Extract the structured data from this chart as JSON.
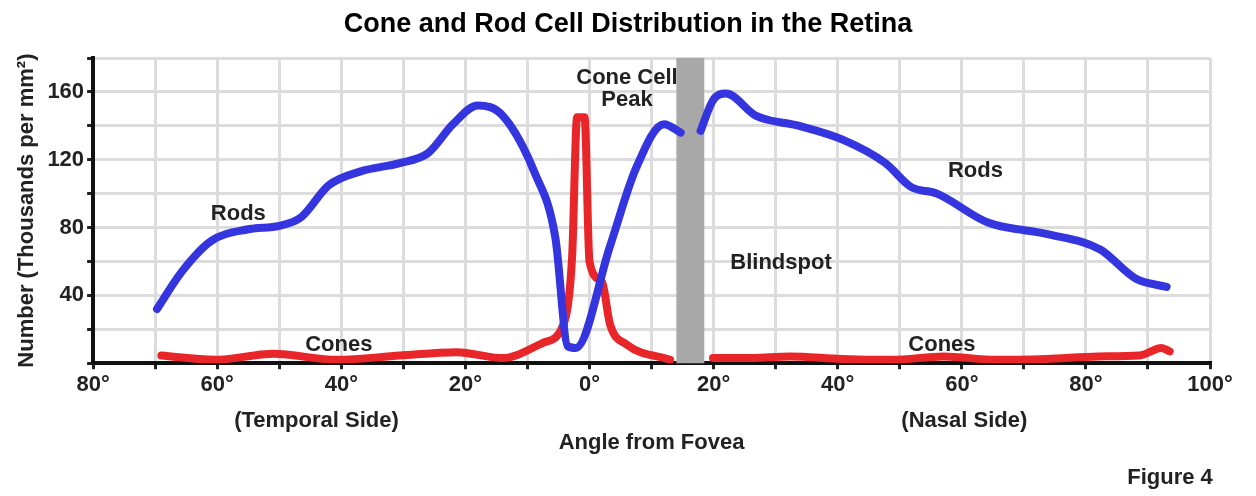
{
  "chart_data": {
    "type": "line",
    "title": "Cone and Rod Cell Distribution in the Retina",
    "xlabel": "Angle from Fovea",
    "ylabel": "Number (Thousands per mm²)",
    "xlim": [
      -80,
      100
    ],
    "xticks": [
      {
        "value": -80,
        "label": "80°"
      },
      {
        "value": -70,
        "label": null
      },
      {
        "value": -60,
        "label": "60°"
      },
      {
        "value": -50,
        "label": null
      },
      {
        "value": -40,
        "label": "40°"
      },
      {
        "value": -30,
        "label": null
      },
      {
        "value": -20,
        "label": "20°"
      },
      {
        "value": -10,
        "label": null
      },
      {
        "value": 0,
        "label": "0°"
      },
      {
        "value": 10,
        "label": null
      },
      {
        "value": 20,
        "label": "20°"
      },
      {
        "value": 30,
        "label": null
      },
      {
        "value": 40,
        "label": "40°"
      },
      {
        "value": 50,
        "label": null
      },
      {
        "value": 60,
        "label": "60°"
      },
      {
        "value": 70,
        "label": null
      },
      {
        "value": 80,
        "label": "80°"
      },
      {
        "value": 90,
        "label": null
      },
      {
        "value": 100,
        "label": "100°"
      }
    ],
    "ylim": [
      0,
      180
    ],
    "yticks": [
      {
        "value": 0,
        "label": null
      },
      {
        "value": 20,
        "label": null
      },
      40,
      {
        "value": 60,
        "label": null
      },
      80,
      {
        "value": 100,
        "label": null
      },
      120,
      {
        "value": 140,
        "label": null
      },
      160,
      {
        "value": 180,
        "label": null
      }
    ],
    "grid": true,
    "legend": false,
    "marker": "none",
    "line_style": "solid",
    "series": [
      {
        "color": "#3535e0",
        "x": [
          -69.7,
          -65.7,
          -61,
          -55,
          -50,
          -46.5,
          -42,
          -37,
          -30.6,
          -26,
          -22,
          -18,
          -14,
          -8.8,
          -5.5,
          -3.5,
          -2.2,
          3.3,
          7.5,
          12,
          14.7,
          16,
          17.9,
          19.9,
          22,
          26.8,
          33.8,
          40.7,
          47.7,
          51.8,
          56,
          64.2,
          74,
          82.3,
          88,
          93
        ],
        "values": [
          32,
          54,
          72,
          79,
          81,
          86,
          105,
          113,
          118,
          124,
          141,
          152,
          146,
          112,
          74,
          10,
          9,
          69,
          115,
          141,
          136,
          null,
          137,
          155,
          159,
          146,
          140,
          132,
          118,
          104,
          100,
          83,
          76,
          67,
          50,
          45
        ]
      },
      {
        "color": "#e8262a",
        "x": [
          -69,
          -60.4,
          -51,
          -40.6,
          -30.6,
          -21.4,
          -14,
          -7.5,
          -4,
          -2.8,
          -2,
          -0.8,
          0,
          2,
          3.3,
          6,
          13,
          16,
          19.9,
          25.7,
          32.3,
          40.6,
          48.8,
          57.1,
          65.4,
          73.7,
          82,
          88.6,
          92.2,
          93.5
        ],
        "values": [
          4.5,
          2,
          5.5,
          2,
          4.5,
          6.5,
          3,
          12,
          25,
          63,
          145,
          145,
          60,
          48,
          23,
          11,
          2,
          null,
          3,
          3,
          4,
          2.5,
          2,
          4,
          2,
          2.5,
          4,
          4.5,
          9,
          7
        ]
      }
    ],
    "bands": [
      {
        "axis": "x",
        "from": 14,
        "to": 18.5,
        "label": "Blindspot",
        "color": "#a8a8a8"
      }
    ],
    "annotations": [
      "Rods",
      "Rods",
      "Cones",
      "Cones",
      "Cone Cell\nPeak",
      "(Temporal Side)",
      "(Nasal Side)",
      "Figure 4"
    ]
  }
}
